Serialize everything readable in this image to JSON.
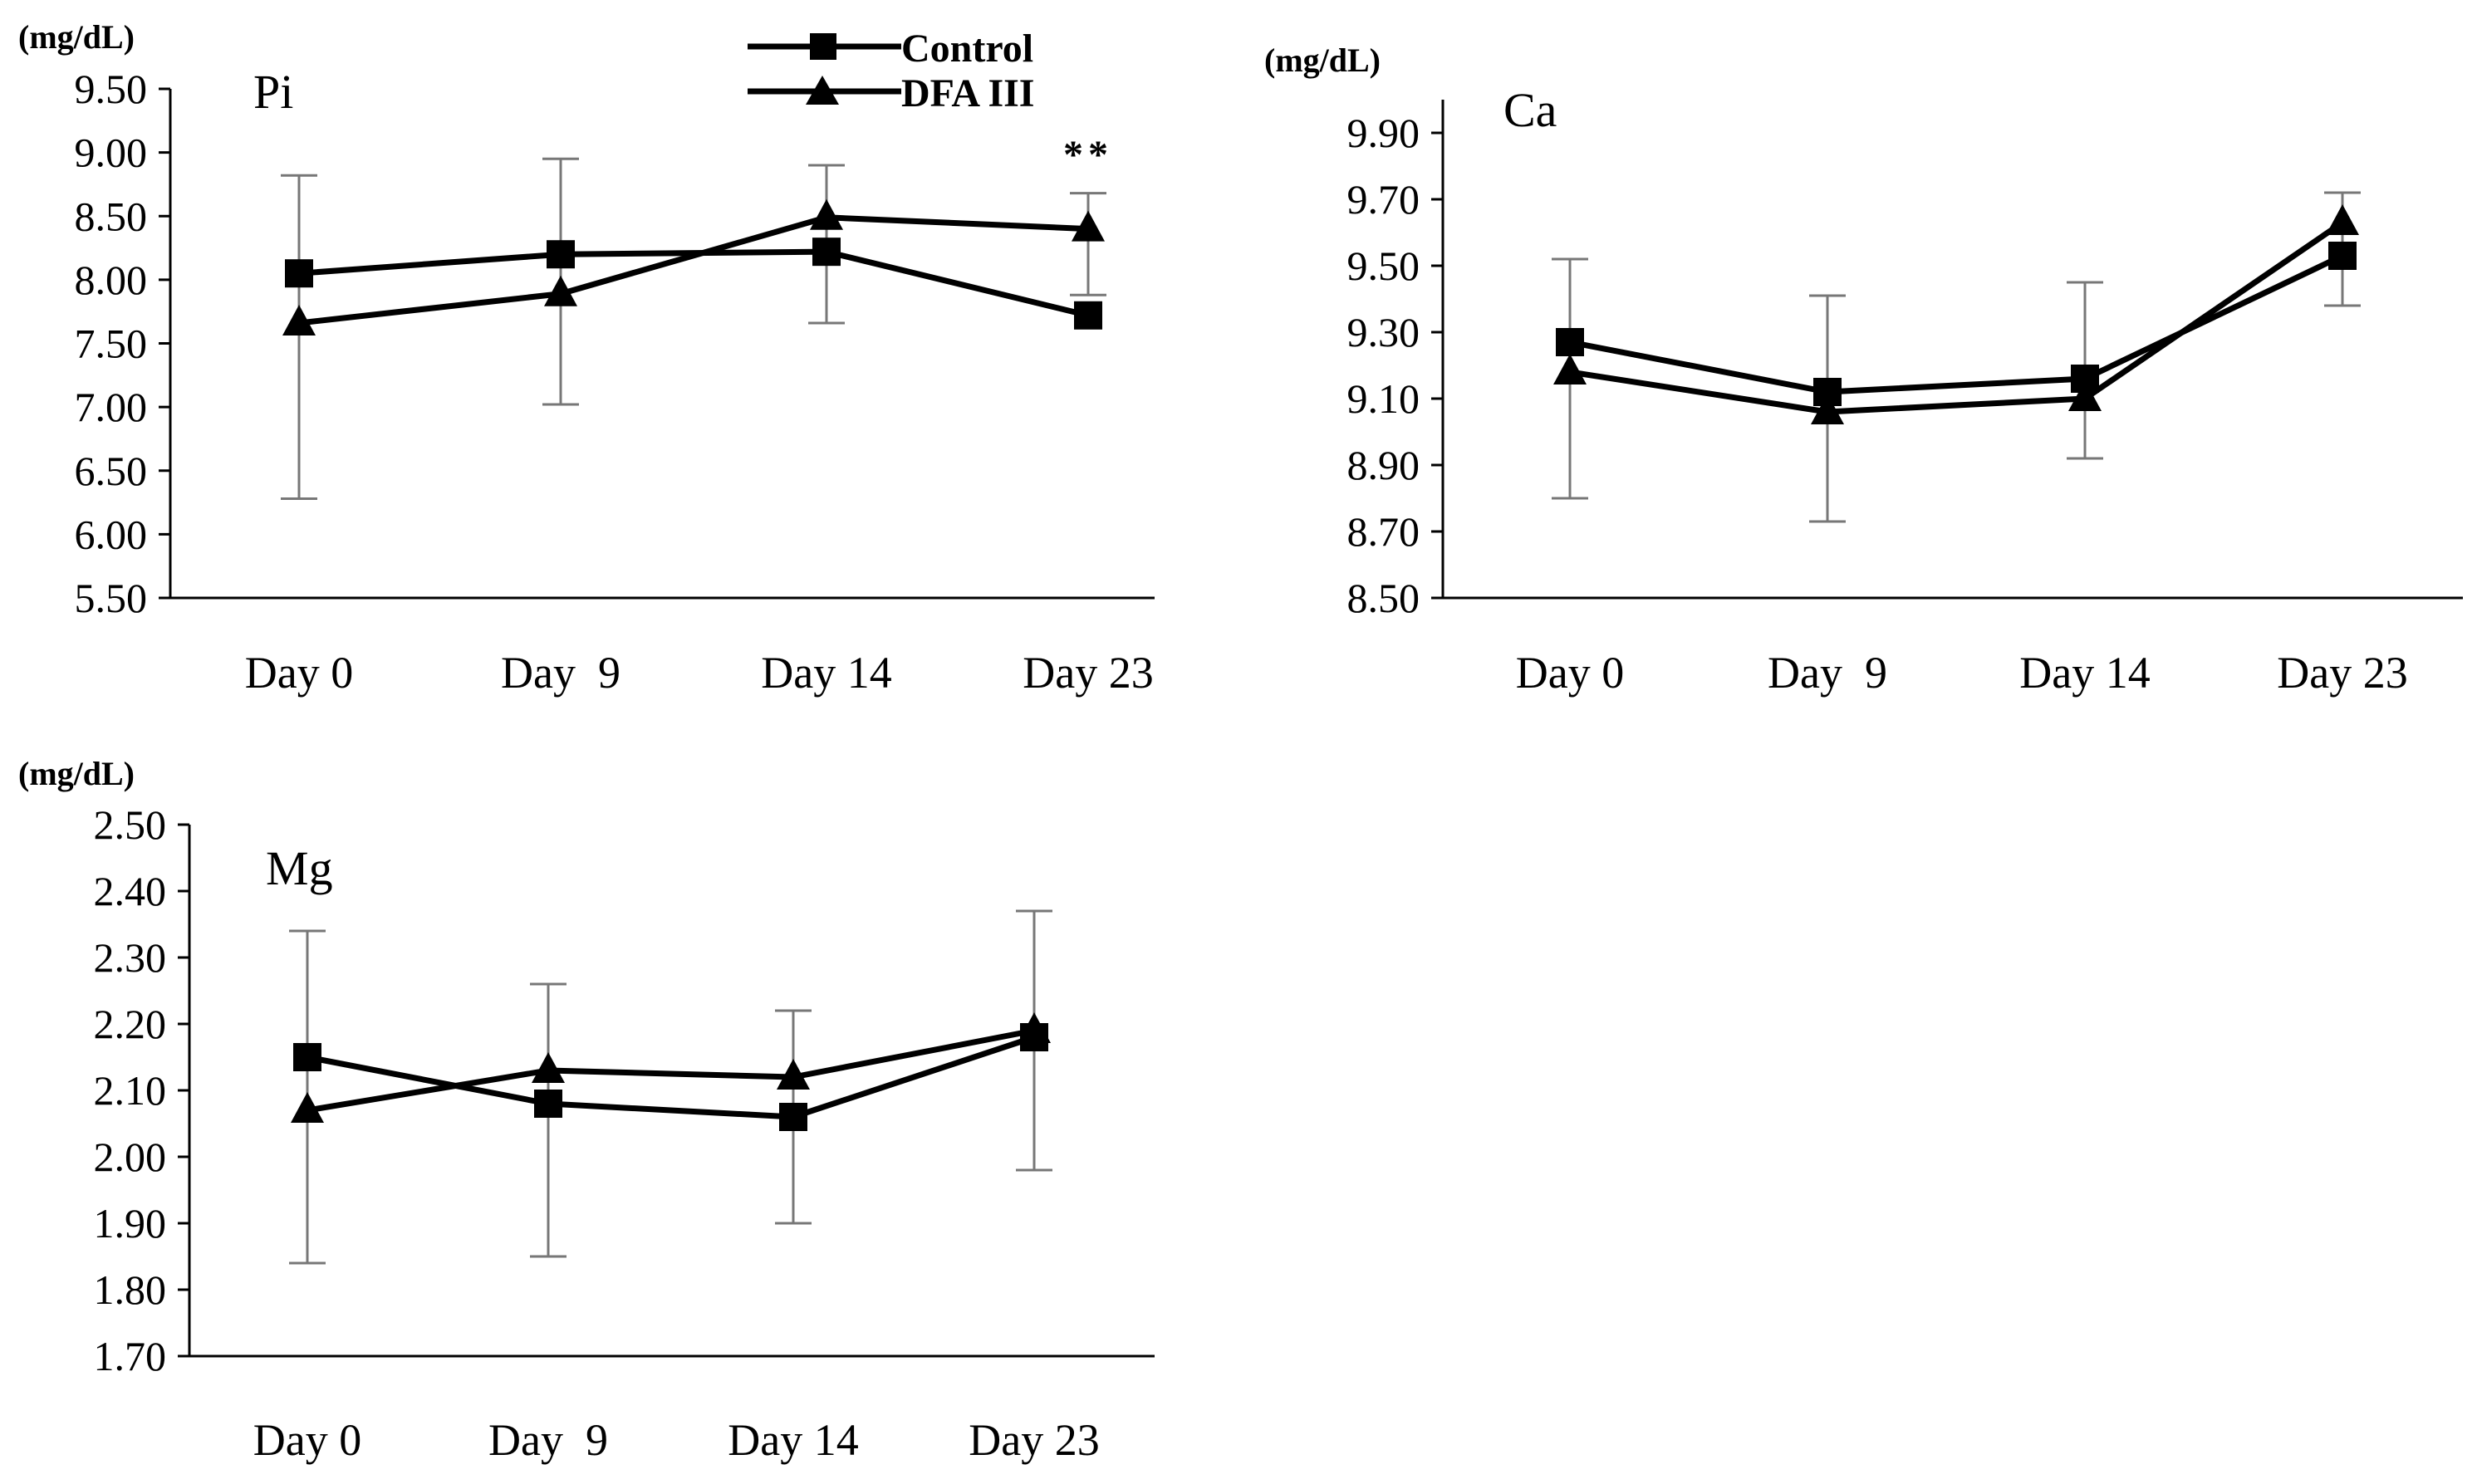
{
  "legend": {
    "items": [
      {
        "label": "Control",
        "marker": "square"
      },
      {
        "label": "DFA III",
        "marker": "triangle"
      }
    ]
  },
  "chart_data": [
    {
      "type": "line",
      "panel_label": "Pi",
      "unit": "(mg/dL)",
      "categories": [
        "Day 0",
        "Day  9",
        "Day 14",
        "Day 23"
      ],
      "ylim": [
        5.5,
        9.5
      ],
      "yticks": [
        "5.50",
        "6.00",
        "6.50",
        "7.00",
        "7.50",
        "8.00",
        "8.50",
        "9.00",
        "9.50"
      ],
      "series": [
        {
          "name": "Control",
          "marker": "square",
          "values": [
            8.05,
            8.2,
            8.22,
            7.72
          ]
        },
        {
          "name": "DFA III",
          "marker": "triangle",
          "values": [
            7.66,
            7.89,
            8.49,
            8.4
          ]
        }
      ],
      "error_bars": [
        {
          "lower": 6.28,
          "upper": 8.82
        },
        {
          "lower": 7.02,
          "upper": 8.95
        },
        {
          "lower": 7.66,
          "upper": 8.9
        },
        {
          "lower": 7.88,
          "upper": 8.68
        }
      ],
      "annotations": [
        {
          "category_index": 3,
          "text": "**"
        }
      ]
    },
    {
      "type": "line",
      "panel_label": "Ca",
      "unit": "(mg/dL)",
      "categories": [
        "Day 0",
        "Day  9",
        "Day 14",
        "Day 23"
      ],
      "ylim": [
        8.5,
        10.0
      ],
      "yticks": [
        "8.50",
        "8.70",
        "8.90",
        "9.10",
        "9.30",
        "9.50",
        "9.70",
        "9.90"
      ],
      "series": [
        {
          "name": "Control",
          "marker": "square",
          "values": [
            9.27,
            9.12,
            9.16,
            9.53
          ]
        },
        {
          "name": "DFA III",
          "marker": "triangle",
          "values": [
            9.18,
            9.06,
            9.1,
            9.63
          ]
        }
      ],
      "error_bars": [
        {
          "lower": 8.8,
          "upper": 9.52
        },
        {
          "lower": 8.73,
          "upper": 9.41
        },
        {
          "lower": 8.92,
          "upper": 9.45
        },
        {
          "lower": 9.38,
          "upper": 9.72
        }
      ],
      "annotations": []
    },
    {
      "type": "line",
      "panel_label": "Mg",
      "unit": "(mg/dL)",
      "categories": [
        "Day 0",
        "Day  9",
        "Day 14",
        "Day 23"
      ],
      "ylim": [
        1.7,
        2.5
      ],
      "yticks": [
        "1.70",
        "1.80",
        "1.90",
        "2.00",
        "2.10",
        "2.20",
        "2.30",
        "2.40",
        "2.50"
      ],
      "series": [
        {
          "name": "Control",
          "marker": "square",
          "values": [
            2.15,
            2.08,
            2.06,
            2.18
          ]
        },
        {
          "name": "DFA III",
          "marker": "triangle",
          "values": [
            2.07,
            2.13,
            2.12,
            2.19
          ]
        }
      ],
      "error_bars": [
        {
          "lower": 1.84,
          "upper": 2.34
        },
        {
          "lower": 1.85,
          "upper": 2.26
        },
        {
          "lower": 1.9,
          "upper": 2.22
        },
        {
          "lower": 1.98,
          "upper": 2.37
        }
      ],
      "annotations": []
    }
  ]
}
